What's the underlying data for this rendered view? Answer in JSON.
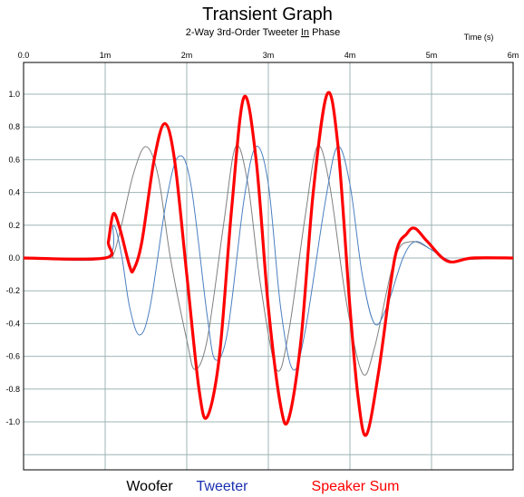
{
  "chart_data": {
    "type": "line",
    "title": "Transient Graph",
    "subtitle_parts": [
      "2-Way 3rd-Order Tweeter ",
      "In",
      " Phase"
    ],
    "xlabel": "Time  (s)",
    "ylabel": "",
    "xlim": [
      0,
      6
    ],
    "ylim": [
      -1.2,
      1.2
    ],
    "x_ticks": [
      {
        "value": 0,
        "label": "0.0"
      },
      {
        "value": 1,
        "label": "1m"
      },
      {
        "value": 2,
        "label": "2m"
      },
      {
        "value": 3,
        "label": "3m"
      },
      {
        "value": 4,
        "label": "4m"
      },
      {
        "value": 5,
        "label": "5m"
      },
      {
        "value": 6,
        "label": "6m"
      }
    ],
    "y_ticks": [
      {
        "value": 1.0,
        "label": "1.0"
      },
      {
        "value": 0.8,
        "label": "0.8"
      },
      {
        "value": 0.6,
        "label": "0.6"
      },
      {
        "value": 0.4,
        "label": "0.4"
      },
      {
        "value": 0.2,
        "label": "0.2"
      },
      {
        "value": 0.0,
        "label": "0.0"
      },
      {
        "value": -0.2,
        "label": "-0.2"
      },
      {
        "value": -0.4,
        "label": "-0.4"
      },
      {
        "value": -0.6,
        "label": "-0.6"
      },
      {
        "value": -0.8,
        "label": "-0.8"
      },
      {
        "value": -1.0,
        "label": "-1.0"
      }
    ],
    "grid": true,
    "legend_position": "bottom",
    "series": [
      {
        "name": "Woofer",
        "color": "#808080",
        "width": "thin",
        "points": [
          [
            0,
            0
          ],
          [
            1.0,
            0
          ],
          [
            1.1,
            0.02
          ],
          [
            1.2,
            0.2
          ],
          [
            1.35,
            0.52
          ],
          [
            1.5,
            0.68
          ],
          [
            1.65,
            0.5
          ],
          [
            1.8,
            0.0
          ],
          [
            2.0,
            -0.5
          ],
          [
            2.1,
            -0.68
          ],
          [
            2.25,
            -0.5
          ],
          [
            2.45,
            0.2
          ],
          [
            2.6,
            0.68
          ],
          [
            2.75,
            0.45
          ],
          [
            2.9,
            -0.15
          ],
          [
            3.1,
            -0.68
          ],
          [
            3.25,
            -0.45
          ],
          [
            3.45,
            0.25
          ],
          [
            3.6,
            0.68
          ],
          [
            3.75,
            0.45
          ],
          [
            3.95,
            -0.25
          ],
          [
            4.15,
            -0.7
          ],
          [
            4.3,
            -0.55
          ],
          [
            4.55,
            0.0
          ],
          [
            4.75,
            0.1
          ],
          [
            5.0,
            0.05
          ],
          [
            5.2,
            -0.02
          ],
          [
            5.4,
            -0.01
          ],
          [
            6.0,
            0
          ]
        ]
      },
      {
        "name": "Tweeter",
        "color": "#4a7fc0",
        "width": "thin",
        "points": [
          [
            0,
            0
          ],
          [
            1.0,
            0
          ],
          [
            1.1,
            0.2
          ],
          [
            1.2,
            0.02
          ],
          [
            1.3,
            -0.3
          ],
          [
            1.42,
            -0.47
          ],
          [
            1.55,
            -0.3
          ],
          [
            1.75,
            0.35
          ],
          [
            1.9,
            0.62
          ],
          [
            2.05,
            0.45
          ],
          [
            2.25,
            -0.35
          ],
          [
            2.35,
            -0.62
          ],
          [
            2.5,
            -0.45
          ],
          [
            2.7,
            0.35
          ],
          [
            2.85,
            0.68
          ],
          [
            3.0,
            0.45
          ],
          [
            3.15,
            -0.3
          ],
          [
            3.3,
            -0.68
          ],
          [
            3.45,
            -0.45
          ],
          [
            3.7,
            0.35
          ],
          [
            3.85,
            0.68
          ],
          [
            4.0,
            0.45
          ],
          [
            4.15,
            -0.1
          ],
          [
            4.3,
            -0.4
          ],
          [
            4.45,
            -0.3
          ],
          [
            4.65,
            0.0
          ],
          [
            4.8,
            0.1
          ],
          [
            5.0,
            0.05
          ],
          [
            5.25,
            -0.02
          ],
          [
            5.5,
            0.0
          ],
          [
            6.0,
            0
          ]
        ]
      },
      {
        "name": "Speaker Sum",
        "color": "#ff0000",
        "width": "thick",
        "points": [
          [
            0,
            0
          ],
          [
            1.0,
            0
          ],
          [
            1.04,
            0.1
          ],
          [
            1.1,
            0.27
          ],
          [
            1.18,
            0.18
          ],
          [
            1.3,
            -0.05
          ],
          [
            1.35,
            -0.07
          ],
          [
            1.45,
            0.1
          ],
          [
            1.6,
            0.6
          ],
          [
            1.73,
            0.82
          ],
          [
            1.85,
            0.6
          ],
          [
            2.0,
            -0.1
          ],
          [
            2.15,
            -0.8
          ],
          [
            2.25,
            -0.97
          ],
          [
            2.4,
            -0.6
          ],
          [
            2.55,
            0.3
          ],
          [
            2.7,
            0.98
          ],
          [
            2.85,
            0.6
          ],
          [
            3.0,
            -0.3
          ],
          [
            3.15,
            -0.9
          ],
          [
            3.25,
            -0.98
          ],
          [
            3.4,
            -0.5
          ],
          [
            3.55,
            0.4
          ],
          [
            3.72,
            1.0
          ],
          [
            3.85,
            0.7
          ],
          [
            4.0,
            -0.3
          ],
          [
            4.1,
            -0.85
          ],
          [
            4.2,
            -1.08
          ],
          [
            4.35,
            -0.7
          ],
          [
            4.55,
            0.0
          ],
          [
            4.7,
            0.15
          ],
          [
            4.8,
            0.18
          ],
          [
            4.95,
            0.1
          ],
          [
            5.2,
            -0.02
          ],
          [
            5.5,
            0.0
          ],
          [
            6.0,
            0
          ]
        ]
      }
    ]
  }
}
